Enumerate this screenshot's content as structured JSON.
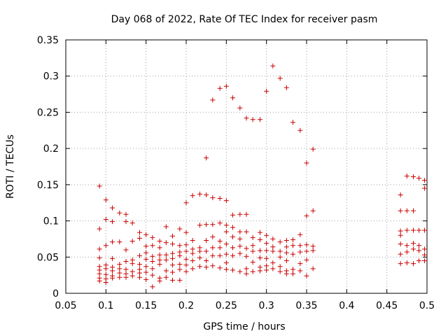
{
  "chart_data": {
    "type": "scatter",
    "title": "Day 068 of 2022, Rate Of TEC Index for receiver pasm",
    "xlabel": "GPS time / hours",
    "ylabel": "ROTI / TECUs",
    "xlim": [
      0.05,
      0.5
    ],
    "ylim": [
      0,
      0.35
    ],
    "grid": true,
    "xticks": [
      0.05,
      0.1,
      0.15,
      0.2,
      0.25,
      0.3,
      0.35,
      0.4,
      0.45,
      0.5
    ],
    "xtick_labels": [
      "0.05",
      "0.1",
      "0.15",
      "0.2",
      "0.25",
      "0.3",
      "0.35",
      "0.4",
      "0.45",
      "0.5"
    ],
    "yticks": [
      0,
      0.05,
      0.1,
      0.15,
      0.2,
      0.25,
      0.3,
      0.35
    ],
    "ytick_labels": [
      "0",
      "0.05",
      "0.1",
      "0.15",
      "0.2",
      "0.25",
      "0.3",
      "0.35"
    ],
    "series": [
      {
        "name": "ROTI",
        "color": "#cc0000",
        "marker": "plus",
        "points": [
          [
            0.092,
            0.148
          ],
          [
            0.092,
            0.089
          ],
          [
            0.092,
            0.061
          ],
          [
            0.092,
            0.049
          ],
          [
            0.092,
            0.037
          ],
          [
            0.092,
            0.032
          ],
          [
            0.092,
            0.027
          ],
          [
            0.092,
            0.021
          ],
          [
            0.092,
            0.017
          ],
          [
            0.1,
            0.129
          ],
          [
            0.1,
            0.102
          ],
          [
            0.1,
            0.066
          ],
          [
            0.1,
            0.039
          ],
          [
            0.1,
            0.034
          ],
          [
            0.1,
            0.026
          ],
          [
            0.1,
            0.02
          ],
          [
            0.1,
            0.015
          ],
          [
            0.108,
            0.118
          ],
          [
            0.108,
            0.099
          ],
          [
            0.108,
            0.071
          ],
          [
            0.108,
            0.048
          ],
          [
            0.108,
            0.036
          ],
          [
            0.108,
            0.031
          ],
          [
            0.108,
            0.024
          ],
          [
            0.108,
            0.021
          ],
          [
            0.117,
            0.111
          ],
          [
            0.117,
            0.071
          ],
          [
            0.117,
            0.04
          ],
          [
            0.117,
            0.034
          ],
          [
            0.117,
            0.028
          ],
          [
            0.117,
            0.022
          ],
          [
            0.125,
            0.109
          ],
          [
            0.125,
            0.099
          ],
          [
            0.125,
            0.06
          ],
          [
            0.125,
            0.044
          ],
          [
            0.125,
            0.033
          ],
          [
            0.125,
            0.027
          ],
          [
            0.125,
            0.022
          ],
          [
            0.133,
            0.097
          ],
          [
            0.133,
            0.072
          ],
          [
            0.133,
            0.046
          ],
          [
            0.133,
            0.041
          ],
          [
            0.133,
            0.03
          ],
          [
            0.133,
            0.024
          ],
          [
            0.142,
            0.084
          ],
          [
            0.142,
            0.076
          ],
          [
            0.142,
            0.052
          ],
          [
            0.142,
            0.04
          ],
          [
            0.142,
            0.033
          ],
          [
            0.142,
            0.028
          ],
          [
            0.142,
            0.022
          ],
          [
            0.15,
            0.081
          ],
          [
            0.15,
            0.065
          ],
          [
            0.15,
            0.056
          ],
          [
            0.15,
            0.047
          ],
          [
            0.15,
            0.037
          ],
          [
            0.15,
            0.029
          ],
          [
            0.15,
            0.019
          ],
          [
            0.158,
            0.077
          ],
          [
            0.158,
            0.066
          ],
          [
            0.158,
            0.051
          ],
          [
            0.158,
            0.044
          ],
          [
            0.158,
            0.034
          ],
          [
            0.158,
            0.025
          ],
          [
            0.158,
            0.009
          ],
          [
            0.167,
            0.072
          ],
          [
            0.167,
            0.063
          ],
          [
            0.167,
            0.053
          ],
          [
            0.167,
            0.046
          ],
          [
            0.167,
            0.04
          ],
          [
            0.167,
            0.021
          ],
          [
            0.167,
            0.017
          ],
          [
            0.175,
            0.092
          ],
          [
            0.175,
            0.07
          ],
          [
            0.175,
            0.053
          ],
          [
            0.175,
            0.046
          ],
          [
            0.175,
            0.031
          ],
          [
            0.175,
            0.022
          ],
          [
            0.183,
            0.079
          ],
          [
            0.183,
            0.068
          ],
          [
            0.183,
            0.055
          ],
          [
            0.183,
            0.048
          ],
          [
            0.183,
            0.039
          ],
          [
            0.183,
            0.029
          ],
          [
            0.183,
            0.018
          ],
          [
            0.192,
            0.089
          ],
          [
            0.192,
            0.066
          ],
          [
            0.192,
            0.057
          ],
          [
            0.192,
            0.052
          ],
          [
            0.192,
            0.04
          ],
          [
            0.192,
            0.033
          ],
          [
            0.192,
            0.018
          ],
          [
            0.2,
            0.125
          ],
          [
            0.2,
            0.084
          ],
          [
            0.2,
            0.067
          ],
          [
            0.2,
            0.058
          ],
          [
            0.2,
            0.047
          ],
          [
            0.2,
            0.039
          ],
          [
            0.2,
            0.03
          ],
          [
            0.208,
            0.135
          ],
          [
            0.208,
            0.073
          ],
          [
            0.208,
            0.061
          ],
          [
            0.208,
            0.055
          ],
          [
            0.208,
            0.045
          ],
          [
            0.208,
            0.034
          ],
          [
            0.217,
            0.137
          ],
          [
            0.217,
            0.094
          ],
          [
            0.217,
            0.063
          ],
          [
            0.217,
            0.058
          ],
          [
            0.217,
            0.049
          ],
          [
            0.217,
            0.037
          ],
          [
            0.225,
            0.187
          ],
          [
            0.225,
            0.136
          ],
          [
            0.225,
            0.095
          ],
          [
            0.225,
            0.073
          ],
          [
            0.225,
            0.058
          ],
          [
            0.225,
            0.045
          ],
          [
            0.225,
            0.036
          ],
          [
            0.233,
            0.267
          ],
          [
            0.233,
            0.132
          ],
          [
            0.233,
            0.095
          ],
          [
            0.233,
            0.078
          ],
          [
            0.233,
            0.063
          ],
          [
            0.233,
            0.052
          ],
          [
            0.233,
            0.038
          ],
          [
            0.242,
            0.283
          ],
          [
            0.242,
            0.131
          ],
          [
            0.242,
            0.097
          ],
          [
            0.242,
            0.072
          ],
          [
            0.242,
            0.063
          ],
          [
            0.242,
            0.052
          ],
          [
            0.242,
            0.035
          ],
          [
            0.25,
            0.286
          ],
          [
            0.25,
            0.128
          ],
          [
            0.25,
            0.094
          ],
          [
            0.25,
            0.085
          ],
          [
            0.25,
            0.068
          ],
          [
            0.25,
            0.054
          ],
          [
            0.25,
            0.042
          ],
          [
            0.25,
            0.033
          ],
          [
            0.258,
            0.27
          ],
          [
            0.258,
            0.108
          ],
          [
            0.258,
            0.091
          ],
          [
            0.258,
            0.078
          ],
          [
            0.258,
            0.063
          ],
          [
            0.258,
            0.052
          ],
          [
            0.258,
            0.032
          ],
          [
            0.267,
            0.256
          ],
          [
            0.267,
            0.109
          ],
          [
            0.267,
            0.085
          ],
          [
            0.267,
            0.075
          ],
          [
            0.267,
            0.065
          ],
          [
            0.267,
            0.055
          ],
          [
            0.267,
            0.03
          ],
          [
            0.275,
            0.242
          ],
          [
            0.275,
            0.109
          ],
          [
            0.275,
            0.085
          ],
          [
            0.275,
            0.062
          ],
          [
            0.275,
            0.051
          ],
          [
            0.275,
            0.034
          ],
          [
            0.275,
            0.027
          ],
          [
            0.283,
            0.24
          ],
          [
            0.283,
            0.077
          ],
          [
            0.283,
            0.066
          ],
          [
            0.283,
            0.058
          ],
          [
            0.283,
            0.043
          ],
          [
            0.283,
            0.03
          ],
          [
            0.292,
            0.24
          ],
          [
            0.292,
            0.084
          ],
          [
            0.292,
            0.074
          ],
          [
            0.292,
            0.059
          ],
          [
            0.292,
            0.049
          ],
          [
            0.292,
            0.036
          ],
          [
            0.292,
            0.031
          ],
          [
            0.3,
            0.279
          ],
          [
            0.3,
            0.08
          ],
          [
            0.3,
            0.069
          ],
          [
            0.3,
            0.059
          ],
          [
            0.3,
            0.048
          ],
          [
            0.3,
            0.038
          ],
          [
            0.3,
            0.032
          ],
          [
            0.308,
            0.314
          ],
          [
            0.308,
            0.075
          ],
          [
            0.308,
            0.064
          ],
          [
            0.308,
            0.058
          ],
          [
            0.308,
            0.042
          ],
          [
            0.308,
            0.034
          ],
          [
            0.317,
            0.297
          ],
          [
            0.317,
            0.071
          ],
          [
            0.317,
            0.058
          ],
          [
            0.317,
            0.05
          ],
          [
            0.317,
            0.037
          ],
          [
            0.317,
            0.03
          ],
          [
            0.325,
            0.284
          ],
          [
            0.325,
            0.073
          ],
          [
            0.325,
            0.064
          ],
          [
            0.325,
            0.056
          ],
          [
            0.325,
            0.045
          ],
          [
            0.325,
            0.031
          ],
          [
            0.325,
            0.027
          ],
          [
            0.333,
            0.236
          ],
          [
            0.333,
            0.074
          ],
          [
            0.333,
            0.066
          ],
          [
            0.333,
            0.054
          ],
          [
            0.333,
            0.033
          ],
          [
            0.333,
            0.027
          ],
          [
            0.342,
            0.225
          ],
          [
            0.342,
            0.081
          ],
          [
            0.342,
            0.066
          ],
          [
            0.342,
            0.057
          ],
          [
            0.342,
            0.041
          ],
          [
            0.342,
            0.031
          ],
          [
            0.35,
            0.18
          ],
          [
            0.35,
            0.107
          ],
          [
            0.35,
            0.067
          ],
          [
            0.35,
            0.058
          ],
          [
            0.35,
            0.046
          ],
          [
            0.35,
            0.024
          ],
          [
            0.358,
            0.199
          ],
          [
            0.358,
            0.114
          ],
          [
            0.358,
            0.065
          ],
          [
            0.358,
            0.059
          ],
          [
            0.358,
            0.034
          ],
          [
            0.467,
            0.136
          ],
          [
            0.467,
            0.114
          ],
          [
            0.467,
            0.086
          ],
          [
            0.467,
            0.08
          ],
          [
            0.467,
            0.068
          ],
          [
            0.467,
            0.054
          ],
          [
            0.467,
            0.041
          ],
          [
            0.475,
            0.162
          ],
          [
            0.475,
            0.114
          ],
          [
            0.475,
            0.087
          ],
          [
            0.475,
            0.066
          ],
          [
            0.475,
            0.057
          ],
          [
            0.475,
            0.042
          ],
          [
            0.483,
            0.161
          ],
          [
            0.483,
            0.114
          ],
          [
            0.483,
            0.087
          ],
          [
            0.483,
            0.069
          ],
          [
            0.483,
            0.061
          ],
          [
            0.483,
            0.041
          ],
          [
            0.49,
            0.159
          ],
          [
            0.49,
            0.087
          ],
          [
            0.49,
            0.066
          ],
          [
            0.49,
            0.059
          ],
          [
            0.49,
            0.045
          ],
          [
            0.497,
            0.156
          ],
          [
            0.497,
            0.145
          ],
          [
            0.497,
            0.087
          ],
          [
            0.497,
            0.061
          ],
          [
            0.497,
            0.053
          ],
          [
            0.497,
            0.045
          ]
        ]
      }
    ]
  }
}
